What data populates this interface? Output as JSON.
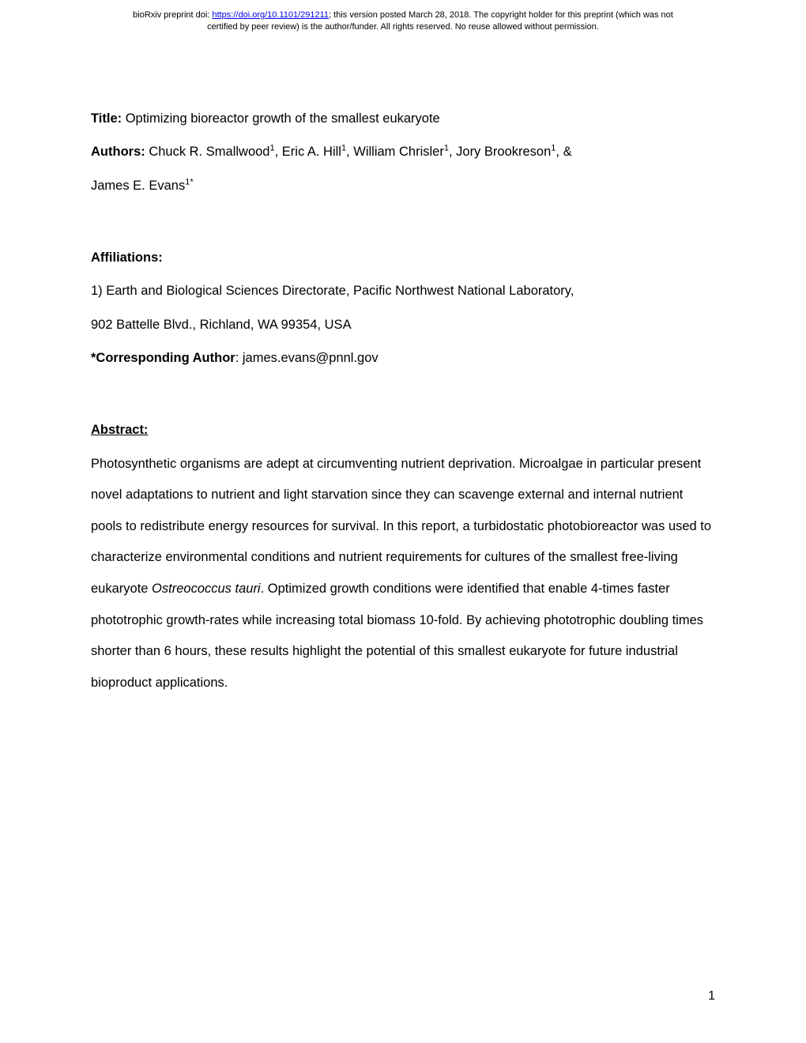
{
  "header": {
    "line1_prefix": "bioRxiv preprint doi: ",
    "doi_url": "https://doi.org/10.1101/291211",
    "line1_suffix": "; this version posted March 28, 2018. The copyright holder for this preprint (which was not",
    "line2": "certified by peer review) is the author/funder. All rights reserved. No reuse allowed without permission."
  },
  "title": {
    "label": "Title:",
    "text": " Optimizing bioreactor growth of the smallest eukaryote"
  },
  "authors": {
    "label": "Authors:",
    "list": " Chuck R. Smallwood",
    "a1_sup": "1",
    "sep1": ", Eric A. Hill",
    "a2_sup": "1",
    "sep2": ", William Chrisler",
    "a3_sup": "1",
    "sep3": ", Jory Brookreson",
    "a4_sup": "1",
    "sep4": ", &",
    "line2_name": "James E. Evans",
    "a5_sup": "1*"
  },
  "affiliations": {
    "label": "Affiliations:",
    "text_line1": "1) Earth and Biological Sciences Directorate, Pacific Northwest National Laboratory,",
    "text_line2": "902 Battelle Blvd., Richland, WA 99354, USA"
  },
  "corresponding": {
    "label": "*Corresponding Author",
    "text": ": james.evans@pnnl.gov"
  },
  "abstract": {
    "label": "Abstract:",
    "para_part1": "Photosynthetic organisms are adept at circumventing nutrient deprivation. Microalgae in particular present novel adaptations to nutrient and light starvation since they can scavenge external and internal nutrient pools to redistribute energy resources for survival. In this report, a turbidostatic photobioreactor was used to characterize environmental conditions and nutrient requirements for cultures of the smallest free-living eukaryote ",
    "species": "Ostreococcus tauri",
    "para_part2": ". Optimized growth conditions were identified that enable 4-times faster phototrophic growth-rates while increasing total biomass 10-fold. By achieving phototrophic doubling times shorter than 6 hours, these results highlight the potential of this smallest eukaryote for future industrial bioproduct applications."
  },
  "page_number": "1"
}
